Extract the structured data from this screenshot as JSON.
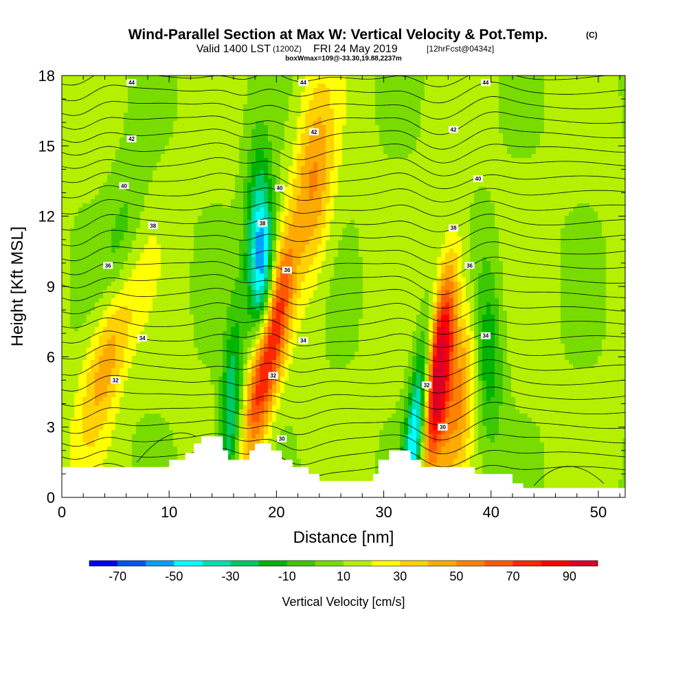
{
  "title": {
    "main": "Wind-Parallel Section at Max W: Vertical Velocity & Pot.Temp.",
    "copyright": "(C)",
    "valid_prefix": "Valid 1400 LST",
    "valid_utc": "(1200Z)",
    "valid_date": "FRI 24 May 2019",
    "forecast": "[12hrFcst@0434z]",
    "box_info": "boxWmax=109@-33.30,19.88,2237m"
  },
  "chart_data": {
    "type": "heatmap",
    "xlabel": "Distance [nm]",
    "ylabel": "Height [Kft MSL]",
    "xlim": [
      0,
      52.5
    ],
    "ylim": [
      0,
      18
    ],
    "x_ticks": [
      0,
      10,
      20,
      30,
      40,
      50
    ],
    "y_ticks": [
      0,
      3,
      6,
      9,
      12,
      15,
      18
    ],
    "colorbar": {
      "label": "Vertical Velocity [cm/s]",
      "min": -80,
      "max": 100,
      "tick_values": [
        -70,
        -50,
        -30,
        -10,
        10,
        30,
        50,
        70,
        90
      ],
      "colors": [
        "#0000ee",
        "#0055f0",
        "#00a0ff",
        "#00ffff",
        "#00e0b0",
        "#00c864",
        "#00b400",
        "#3cc800",
        "#78dc00",
        "#b4f000",
        "#ffff00",
        "#ffd200",
        "#ffaa00",
        "#ff8200",
        "#ff5a00",
        "#ff2800",
        "#ff0000",
        "#dc0028"
      ]
    },
    "updrafts": [
      {
        "x_bottom": 17.0,
        "x_top": 23.5,
        "peak": 90,
        "z_peak": 6.2,
        "width": 1.4
      },
      {
        "x_bottom": 33.8,
        "x_top": 38.0,
        "peak": 100,
        "z_peak": 5.5,
        "width": 1.2
      },
      {
        "x_bottom": 1.5,
        "x_top": 10.5,
        "peak": 48,
        "z_peak": 6.8,
        "width": 2.0
      },
      {
        "x_bottom": 36.0,
        "x_top": 40.5,
        "peak": 38,
        "z_peak": 4.5,
        "width": 1.5
      },
      {
        "x_bottom": 22.0,
        "x_top": 24.0,
        "peak": 38,
        "z_peak": 13.5,
        "width": 1.8
      }
    ],
    "downdrafts": [
      {
        "x_bottom": 19.0,
        "x_top": 18.3,
        "peak": -75,
        "z_peak": 10.0,
        "width": 1.3
      },
      {
        "x_bottom": 32.3,
        "x_top": 36.8,
        "peak": -70,
        "z_peak": 3.0,
        "width": 1.0
      },
      {
        "x_bottom": 15.3,
        "x_top": 17.5,
        "peak": -45,
        "z_peak": 3.5,
        "width": 1.0
      },
      {
        "x_bottom": 4.0,
        "x_top": 7.5,
        "peak": -28,
        "z_peak": 9.5,
        "width": 2.0
      },
      {
        "x_bottom": 40.0,
        "x_top": 39.0,
        "peak": -32,
        "z_peak": 6.5,
        "width": 1.4
      }
    ],
    "terrain": [
      [
        0,
        1.3
      ],
      [
        10,
        1.3
      ],
      [
        10,
        1.6
      ],
      [
        11.5,
        1.6
      ],
      [
        11.5,
        1.9
      ],
      [
        12.3,
        1.9
      ],
      [
        12.3,
        2.3
      ],
      [
        13,
        2.3
      ],
      [
        13,
        2.6
      ],
      [
        15,
        2.6
      ],
      [
        15,
        2.0
      ],
      [
        15.5,
        2.0
      ],
      [
        15.5,
        1.6
      ],
      [
        17.5,
        1.6
      ],
      [
        17.5,
        2.0
      ],
      [
        18,
        2.0
      ],
      [
        18,
        2.3
      ],
      [
        19.5,
        2.3
      ],
      [
        19.5,
        2.0
      ],
      [
        20.5,
        2.0
      ],
      [
        20.5,
        1.6
      ],
      [
        21.5,
        1.6
      ],
      [
        21.5,
        1.3
      ],
      [
        23,
        1.3
      ],
      [
        23,
        1.0
      ],
      [
        24,
        1.0
      ],
      [
        24,
        0.7
      ],
      [
        29,
        0.7
      ],
      [
        29,
        1.0
      ],
      [
        29.5,
        1.0
      ],
      [
        29.5,
        1.6
      ],
      [
        30.5,
        1.6
      ],
      [
        30.5,
        2.0
      ],
      [
        32.5,
        2.0
      ],
      [
        32.5,
        1.6
      ],
      [
        33.5,
        1.6
      ],
      [
        33.5,
        1.3
      ],
      [
        38.5,
        1.3
      ],
      [
        38.5,
        1.0
      ],
      [
        42,
        1.0
      ],
      [
        42,
        0.6
      ],
      [
        43,
        0.6
      ],
      [
        43,
        0.4
      ],
      [
        52.5,
        0.4
      ]
    ],
    "theta_labels": [
      {
        "value": "44",
        "x": 6.5,
        "z": 17.7
      },
      {
        "value": "44",
        "x": 22.5,
        "z": 17.7
      },
      {
        "value": "44",
        "x": 39.5,
        "z": 17.7
      },
      {
        "value": "42",
        "x": 6.5,
        "z": 15.3
      },
      {
        "value": "42",
        "x": 23.5,
        "z": 15.6
      },
      {
        "value": "42",
        "x": 36.5,
        "z": 15.7
      },
      {
        "value": "40",
        "x": 5.8,
        "z": 13.3
      },
      {
        "value": "40",
        "x": 20.3,
        "z": 13.2
      },
      {
        "value": "40",
        "x": 38.8,
        "z": 13.6
      },
      {
        "value": "38",
        "x": 8.5,
        "z": 11.6
      },
      {
        "value": "38",
        "x": 18.7,
        "z": 11.7
      },
      {
        "value": "38",
        "x": 36.5,
        "z": 11.5
      },
      {
        "value": "36",
        "x": 4.3,
        "z": 9.9
      },
      {
        "value": "36",
        "x": 21.0,
        "z": 9.7
      },
      {
        "value": "36",
        "x": 38.0,
        "z": 9.9
      },
      {
        "value": "34",
        "x": 7.5,
        "z": 6.8
      },
      {
        "value": "34",
        "x": 22.5,
        "z": 6.7
      },
      {
        "value": "34",
        "x": 39.5,
        "z": 6.9
      },
      {
        "value": "32",
        "x": 5.0,
        "z": 5.0
      },
      {
        "value": "32",
        "x": 19.7,
        "z": 5.2
      },
      {
        "value": "32",
        "x": 34.0,
        "z": 4.8
      },
      {
        "value": "30",
        "x": 20.5,
        "z": 2.5
      },
      {
        "value": "30",
        "x": 35.5,
        "z": 3.0
      }
    ]
  }
}
